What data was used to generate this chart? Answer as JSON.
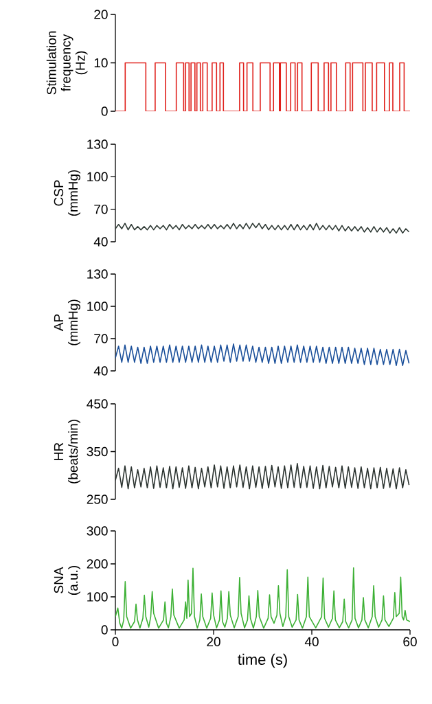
{
  "chart_data": [
    {
      "type": "step",
      "ylabel": "Stimulation frequency (Hz)",
      "color": "#e0201b",
      "xlim": [
        0,
        60
      ],
      "ylim": [
        0,
        20
      ],
      "yticks": [
        0,
        10,
        20
      ],
      "tick_labels": "y",
      "x": [
        0,
        2.0,
        6.2,
        8.1,
        10.2,
        12.4,
        13.9,
        14.3,
        15.0,
        15.4,
        16.2,
        16.6,
        17.3,
        17.8,
        18.7,
        19.7,
        20.6,
        21.3,
        22.0,
        25.3,
        26.1,
        26.8,
        28.0,
        29.5,
        31.5,
        32.2,
        33.4,
        33.6,
        34.8,
        35.7,
        36.6,
        37.1,
        38.0,
        39.9,
        41.3,
        42.5,
        43.4,
        43.9,
        45.0,
        46.9,
        47.8,
        48.3,
        50.4,
        50.9,
        52.3,
        53.2,
        54.8,
        55.8,
        56.5,
        57.9,
        58.8,
        60
      ],
      "values": [
        0,
        10,
        0,
        10,
        0,
        10,
        0,
        10,
        0,
        10,
        0,
        10,
        0,
        10,
        0,
        10,
        0,
        10,
        0,
        10,
        0,
        10,
        0,
        10,
        0,
        10,
        0,
        10,
        0,
        10,
        0,
        10,
        0,
        10,
        0,
        10,
        0,
        10,
        0,
        10,
        0,
        10,
        0,
        10,
        0,
        10,
        0,
        10,
        0,
        10,
        0,
        0
      ]
    },
    {
      "type": "line",
      "ylabel": "CSP (mmHg)",
      "color": "#2f3a35",
      "xlim": [
        0,
        60
      ],
      "ylim": [
        40,
        130
      ],
      "yticks": [
        40,
        70,
        100,
        130
      ],
      "tick_labels": "y",
      "x": [
        0,
        0.65,
        1.3,
        1.95,
        2.6,
        3.25,
        3.9,
        4.55,
        5.2,
        5.85,
        6.5,
        7.15,
        7.8,
        8.45,
        9.1,
        9.75,
        10.4,
        11.05,
        11.7,
        12.35,
        13.0,
        13.65,
        14.3,
        14.95,
        15.6,
        16.25,
        16.9,
        17.55,
        18.2,
        18.85,
        19.5,
        20.15,
        20.8,
        21.45,
        22.1,
        22.75,
        23.4,
        24.05,
        24.7,
        25.35,
        26.0,
        26.65,
        27.3,
        27.95,
        28.6,
        29.25,
        29.9,
        30.55,
        31.2,
        31.85,
        32.5,
        33.15,
        33.8,
        34.45,
        35.1,
        35.75,
        36.4,
        37.05,
        37.7,
        38.35,
        39.0,
        39.65,
        40.3,
        40.95,
        41.6,
        42.25,
        42.9,
        43.55,
        44.2,
        44.85,
        45.5,
        46.15,
        46.8,
        47.45,
        48.1,
        48.75,
        49.4,
        50.05,
        50.7,
        51.35,
        52.0,
        52.65,
        53.3,
        53.95,
        54.6,
        55.25,
        55.9,
        56.55,
        57.2,
        57.85,
        58.5,
        59.15,
        59.8
      ],
      "values": [
        52,
        56,
        52,
        57,
        51,
        56,
        51,
        54,
        51,
        54,
        51,
        55,
        51,
        55,
        52,
        55,
        51,
        56,
        52,
        55,
        51,
        56,
        52,
        55,
        52,
        56,
        52,
        55,
        52,
        56,
        52,
        56,
        52,
        55,
        52,
        56,
        52,
        57,
        52,
        56,
        52,
        57,
        52,
        57,
        53,
        57,
        52,
        56,
        51,
        55,
        51,
        55,
        51,
        55,
        51,
        56,
        51,
        56,
        51,
        55,
        51,
        56,
        51,
        57,
        51,
        55,
        51,
        55,
        51,
        55,
        50,
        55,
        50,
        54,
        50,
        54,
        50,
        54,
        49,
        53,
        49,
        54,
        49,
        53,
        49,
        53,
        48,
        52,
        48,
        53,
        48,
        52,
        49
      ]
    },
    {
      "type": "line",
      "ylabel": "AP (mmHg)",
      "color": "#1a4f9a",
      "xlim": [
        0,
        60
      ],
      "ylim": [
        40,
        130
      ],
      "yticks": [
        40,
        70,
        100,
        130
      ],
      "tick_labels": "y",
      "x": [
        0,
        0.65,
        1.3,
        1.95,
        2.6,
        3.25,
        3.9,
        4.55,
        5.2,
        5.85,
        6.5,
        7.15,
        7.8,
        8.45,
        9.1,
        9.75,
        10.4,
        11.05,
        11.7,
        12.35,
        13.0,
        13.65,
        14.3,
        14.95,
        15.6,
        16.25,
        16.9,
        17.55,
        18.2,
        18.85,
        19.5,
        20.15,
        20.8,
        21.45,
        22.1,
        22.75,
        23.4,
        24.05,
        24.7,
        25.35,
        26.0,
        26.65,
        27.3,
        27.95,
        28.6,
        29.25,
        29.9,
        30.55,
        31.2,
        31.85,
        32.5,
        33.15,
        33.8,
        34.45,
        35.1,
        35.75,
        36.4,
        37.05,
        37.7,
        38.35,
        39.0,
        39.65,
        40.3,
        40.95,
        41.6,
        42.25,
        42.9,
        43.55,
        44.2,
        44.85,
        45.5,
        46.15,
        46.8,
        47.45,
        48.1,
        48.75,
        49.4,
        50.05,
        50.7,
        51.35,
        52.0,
        52.65,
        53.3,
        53.95,
        54.6,
        55.25,
        55.9,
        56.55,
        57.2,
        57.85,
        58.5,
        59.15,
        59.8
      ],
      "values": [
        52,
        63,
        48,
        64,
        48,
        63,
        48,
        62,
        47,
        62,
        47,
        63,
        48,
        63,
        48,
        63,
        48,
        64,
        48,
        63,
        48,
        63,
        48,
        63,
        48,
        63,
        48,
        64,
        48,
        63,
        48,
        63,
        48,
        64,
        49,
        64,
        48,
        65,
        49,
        64,
        49,
        64,
        49,
        63,
        48,
        62,
        48,
        62,
        47,
        62,
        47,
        63,
        47,
        63,
        48,
        63,
        48,
        64,
        48,
        63,
        48,
        63,
        48,
        63,
        48,
        62,
        47,
        62,
        47,
        62,
        47,
        62,
        47,
        62,
        47,
        61,
        47,
        61,
        46,
        61,
        46,
        61,
        46,
        60,
        46,
        60,
        46,
        60,
        45,
        60,
        45,
        59,
        47
      ]
    },
    {
      "type": "line",
      "ylabel": "HR (beats/min)",
      "color": "#2b3330",
      "xlim": [
        0,
        60
      ],
      "ylim": [
        250,
        450
      ],
      "yticks": [
        250,
        350,
        450
      ],
      "tick_labels": "y",
      "x": [
        0,
        0.65,
        1.3,
        1.95,
        2.6,
        3.25,
        3.9,
        4.55,
        5.2,
        5.85,
        6.5,
        7.15,
        7.8,
        8.45,
        9.1,
        9.75,
        10.4,
        11.05,
        11.7,
        12.35,
        13.0,
        13.65,
        14.3,
        14.95,
        15.6,
        16.25,
        16.9,
        17.55,
        18.2,
        18.85,
        19.5,
        20.15,
        20.8,
        21.45,
        22.1,
        22.75,
        23.4,
        24.05,
        24.7,
        25.35,
        26.0,
        26.65,
        27.3,
        27.95,
        28.6,
        29.25,
        29.9,
        30.55,
        31.2,
        31.85,
        32.5,
        33.15,
        33.8,
        34.45,
        35.1,
        35.75,
        36.4,
        37.05,
        37.7,
        38.35,
        39.0,
        39.65,
        40.3,
        40.95,
        41.6,
        42.25,
        42.9,
        43.55,
        44.2,
        44.85,
        45.5,
        46.15,
        46.8,
        47.45,
        48.1,
        48.75,
        49.4,
        50.05,
        50.7,
        51.35,
        52.0,
        52.65,
        53.3,
        53.95,
        54.6,
        55.25,
        55.9,
        56.55,
        57.2,
        57.85,
        58.5,
        59.15,
        59.8
      ],
      "values": [
        290,
        315,
        275,
        320,
        272,
        318,
        274,
        312,
        276,
        315,
        274,
        318,
        273,
        320,
        275,
        316,
        274,
        319,
        272,
        318,
        275,
        316,
        273,
        320,
        274,
        317,
        272,
        315,
        276,
        318,
        274,
        322,
        276,
        320,
        273,
        318,
        274,
        320,
        276,
        322,
        275,
        318,
        272,
        320,
        275,
        318,
        273,
        319,
        274,
        321,
        276,
        318,
        273,
        320,
        274,
        322,
        275,
        325,
        274,
        319,
        275,
        320,
        273,
        318,
        272,
        321,
        274,
        319,
        276,
        317,
        274,
        320,
        273,
        318,
        275,
        316,
        273,
        318,
        274,
        315,
        272,
        316,
        274,
        317,
        273,
        315,
        275,
        314,
        272,
        316,
        274,
        312,
        280
      ]
    },
    {
      "type": "line",
      "ylabel": "SNA (a.u.)",
      "xlabel": "time (s)",
      "color": "#3cb034",
      "xlim": [
        0,
        60
      ],
      "ylim": [
        0,
        300
      ],
      "xticks": [
        0,
        20,
        40,
        60
      ],
      "yticks": [
        0,
        100,
        200,
        300
      ],
      "x": [
        0,
        0.5,
        0.9,
        1.3,
        1.7,
        2.0,
        2.3,
        3.1,
        3.9,
        4.2,
        4.5,
        5.0,
        5.6,
        5.9,
        6.2,
        6.8,
        7.2,
        7.5,
        7.8,
        8.8,
        9.8,
        10.1,
        10.4,
        10.8,
        11.3,
        11.6,
        11.9,
        13.0,
        14.0,
        14.3,
        14.55,
        14.8,
        15.1,
        15.5,
        15.8,
        16.1,
        16.7,
        17.2,
        17.5,
        17.8,
        18.6,
        19.4,
        19.7,
        20.0,
        20.6,
        21.2,
        21.5,
        21.8,
        22.3,
        22.8,
        23.1,
        23.4,
        24.2,
        25.0,
        25.3,
        25.6,
        26.3,
        26.9,
        27.2,
        27.5,
        28.1,
        28.7,
        29.0,
        29.3,
        30.2,
        31.1,
        31.4,
        31.7,
        32.3,
        32.9,
        33.2,
        33.5,
        34.1,
        34.7,
        35.0,
        35.3,
        36.0,
        36.8,
        37.1,
        37.4,
        38.1,
        38.9,
        39.2,
        39.5,
        40.8,
        42.0,
        42.3,
        42.6,
        43.4,
        44.2,
        44.5,
        44.8,
        45.6,
        46.3,
        46.6,
        46.9,
        47.5,
        48.2,
        48.5,
        48.8,
        49.5,
        50.2,
        50.5,
        50.8,
        51.5,
        52.3,
        52.6,
        52.9,
        53.6,
        54.3,
        54.6,
        54.9,
        55.7,
        56.6,
        56.9,
        57.2,
        57.8,
        58.1,
        58.4,
        58.7,
        59.0,
        59.3,
        60
      ],
      "values": [
        40,
        66,
        20,
        5,
        30,
        146,
        40,
        5,
        25,
        78,
        30,
        5,
        35,
        105,
        40,
        8,
        40,
        116,
        50,
        5,
        30,
        85,
        20,
        6,
        40,
        124,
        45,
        5,
        30,
        85,
        35,
        151,
        40,
        50,
        187,
        40,
        5,
        30,
        109,
        40,
        5,
        35,
        112,
        45,
        6,
        30,
        118,
        25,
        8,
        35,
        116,
        45,
        6,
        40,
        159,
        50,
        6,
        30,
        103,
        35,
        5,
        40,
        119,
        40,
        5,
        35,
        106,
        40,
        20,
        45,
        134,
        50,
        10,
        40,
        182,
        40,
        8,
        30,
        107,
        30,
        5,
        40,
        160,
        40,
        6,
        40,
        157,
        35,
        8,
        35,
        118,
        30,
        6,
        25,
        93,
        25,
        6,
        30,
        188,
        35,
        6,
        30,
        98,
        30,
        6,
        40,
        134,
        40,
        8,
        30,
        103,
        30,
        10,
        35,
        113,
        40,
        50,
        160,
        40,
        30,
        59,
        30,
        25
      ]
    }
  ]
}
